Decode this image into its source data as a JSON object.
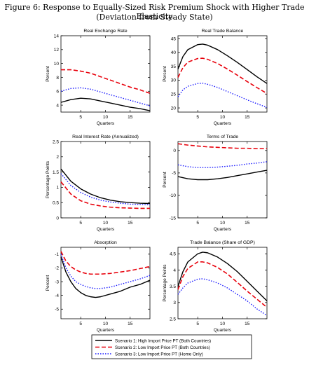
{
  "figure": {
    "title": "Figure 6: Response to Equally-Sized Risk Premium Shock with Higher Trade Elasticity",
    "subtitle": "(Deviation from Steady State)"
  },
  "colors": {
    "scenario1": "#000000",
    "scenario2": "#e8000b",
    "scenario3": "#1a1aff"
  },
  "legend": {
    "position": "bottom-center",
    "entries": [
      {
        "label": "Scenario 1: High Import Price PT (Both Countries)",
        "style": "solid"
      },
      {
        "label": "Scenario 2: Low Import Price PT (Both Countries)",
        "style": "dashed"
      },
      {
        "label": "Scenario 3: Low Import Price PT (Home Only)",
        "style": "dotted"
      }
    ]
  },
  "chart_data": [
    {
      "type": "line",
      "title": "Real Exchange Rate",
      "xlabel": "Quarters",
      "ylabel": "Percent",
      "xlim": [
        1,
        19
      ],
      "ylim": [
        3,
        14
      ],
      "xticks": [
        5,
        10,
        15
      ],
      "yticks": [
        4,
        6,
        8,
        10,
        12,
        14
      ],
      "x": [
        1,
        3,
        5,
        7,
        9,
        11,
        13,
        15,
        17,
        19
      ],
      "series": [
        {
          "values": [
            4.4,
            4.8,
            5.0,
            4.9,
            4.6,
            4.3,
            4.0,
            3.7,
            3.5,
            3.2
          ]
        },
        {
          "values": [
            9.1,
            9.1,
            8.9,
            8.6,
            8.1,
            7.6,
            7.1,
            6.6,
            6.2,
            5.7
          ]
        },
        {
          "values": [
            6.0,
            6.4,
            6.5,
            6.3,
            5.9,
            5.5,
            5.1,
            4.7,
            4.3,
            3.9
          ]
        }
      ]
    },
    {
      "type": "line",
      "title": "Real Trade Balance",
      "xlabel": "Quarters",
      "ylabel": "Percent",
      "xlim": [
        1,
        19
      ],
      "ylim": [
        18.5,
        46
      ],
      "xticks": [
        5,
        10,
        15
      ],
      "yticks": [
        20,
        25,
        30,
        35,
        40,
        45
      ],
      "x": [
        1,
        2,
        3,
        5,
        6,
        7,
        9,
        11,
        13,
        15,
        17,
        19
      ],
      "series": [
        {
          "values": [
            34.0,
            38.5,
            41.0,
            42.8,
            43.0,
            42.6,
            41.0,
            38.8,
            36.4,
            33.8,
            31.2,
            28.8
          ]
        },
        {
          "values": [
            31.0,
            34.5,
            36.5,
            37.8,
            37.9,
            37.5,
            36.0,
            34.0,
            31.8,
            29.5,
            27.3,
            25.2
          ]
        },
        {
          "values": [
            24.0,
            26.5,
            27.8,
            28.8,
            28.9,
            28.5,
            27.4,
            25.9,
            24.4,
            22.9,
            21.5,
            20.2
          ]
        }
      ]
    },
    {
      "type": "line",
      "title": "Real Interest Rate (Annualized)",
      "xlabel": "Quarters",
      "ylabel": "Percentage Points",
      "xlim": [
        1,
        19
      ],
      "ylim": [
        0,
        2.5
      ],
      "xticks": [
        5,
        10,
        15
      ],
      "yticks": [
        0,
        0.5,
        1,
        1.5,
        2,
        2.5
      ],
      "x": [
        1,
        3,
        5,
        7,
        9,
        11,
        13,
        15,
        17,
        19
      ],
      "series": [
        {
          "values": [
            1.6,
            1.2,
            0.95,
            0.78,
            0.66,
            0.58,
            0.53,
            0.5,
            0.48,
            0.47
          ]
        },
        {
          "values": [
            1.18,
            0.78,
            0.56,
            0.45,
            0.39,
            0.35,
            0.33,
            0.32,
            0.31,
            0.31
          ]
        },
        {
          "values": [
            1.45,
            1.06,
            0.83,
            0.68,
            0.58,
            0.52,
            0.48,
            0.45,
            0.44,
            0.43
          ]
        }
      ]
    },
    {
      "type": "line",
      "title": "Terms of Trade",
      "xlabel": "Quarters",
      "ylabel": "Percent",
      "xlim": [
        1,
        19
      ],
      "ylim": [
        -15,
        2
      ],
      "xticks": [
        5,
        10,
        15
      ],
      "yticks": [
        -15,
        -10,
        -5,
        0
      ],
      "x": [
        1,
        3,
        5,
        7,
        9,
        11,
        13,
        15,
        17,
        19
      ],
      "series": [
        {
          "values": [
            -5.8,
            -6.3,
            -6.5,
            -6.5,
            -6.3,
            -6.0,
            -5.6,
            -5.2,
            -4.8,
            -4.4
          ]
        },
        {
          "values": [
            1.5,
            1.2,
            1.0,
            0.8,
            0.7,
            0.6,
            0.5,
            0.5,
            0.4,
            0.4
          ]
        },
        {
          "values": [
            -3.2,
            -3.6,
            -3.8,
            -3.8,
            -3.7,
            -3.5,
            -3.3,
            -3.0,
            -2.8,
            -2.5
          ]
        }
      ]
    },
    {
      "type": "line",
      "title": "Absorption",
      "xlabel": "Quarters",
      "ylabel": "Percent",
      "xlim": [
        1,
        19
      ],
      "ylim": [
        -5.7,
        -0.5
      ],
      "xticks": [
        5,
        10,
        15
      ],
      "yticks": [
        -5,
        -4,
        -3,
        -2,
        -1
      ],
      "x": [
        1,
        2,
        3,
        4,
        5,
        6,
        7,
        8,
        9,
        11,
        13,
        15,
        17,
        19
      ],
      "series": [
        {
          "values": [
            -1.2,
            -2.3,
            -3.0,
            -3.5,
            -3.8,
            -4.0,
            -4.1,
            -4.15,
            -4.1,
            -3.9,
            -3.7,
            -3.4,
            -3.2,
            -2.9
          ]
        },
        {
          "values": [
            -0.8,
            -1.5,
            -1.9,
            -2.15,
            -2.3,
            -2.4,
            -2.45,
            -2.45,
            -2.45,
            -2.4,
            -2.3,
            -2.2,
            -2.05,
            -1.9
          ]
        },
        {
          "values": [
            -1.0,
            -2.0,
            -2.6,
            -3.0,
            -3.2,
            -3.35,
            -3.45,
            -3.5,
            -3.5,
            -3.4,
            -3.2,
            -3.0,
            -2.8,
            -2.55
          ]
        }
      ]
    },
    {
      "type": "line",
      "title": "Trade Balance (Share of GDP)",
      "xlabel": "Quarters",
      "ylabel": "Percentage Points",
      "xlim": [
        1,
        19
      ],
      "ylim": [
        2.5,
        4.7
      ],
      "xticks": [
        5,
        10,
        15
      ],
      "yticks": [
        2.5,
        3,
        3.5,
        4,
        4.5
      ],
      "x": [
        1,
        2,
        3,
        5,
        6,
        7,
        9,
        11,
        13,
        15,
        17,
        19
      ],
      "series": [
        {
          "values": [
            3.5,
            3.95,
            4.25,
            4.5,
            4.55,
            4.53,
            4.4,
            4.2,
            3.95,
            3.65,
            3.35,
            3.05
          ]
        },
        {
          "values": [
            3.4,
            3.8,
            4.05,
            4.25,
            4.25,
            4.22,
            4.08,
            3.88,
            3.62,
            3.35,
            3.1,
            2.85
          ]
        },
        {
          "values": [
            3.25,
            3.45,
            3.6,
            3.72,
            3.73,
            3.7,
            3.6,
            3.45,
            3.25,
            3.05,
            2.8,
            2.6
          ]
        }
      ]
    }
  ]
}
